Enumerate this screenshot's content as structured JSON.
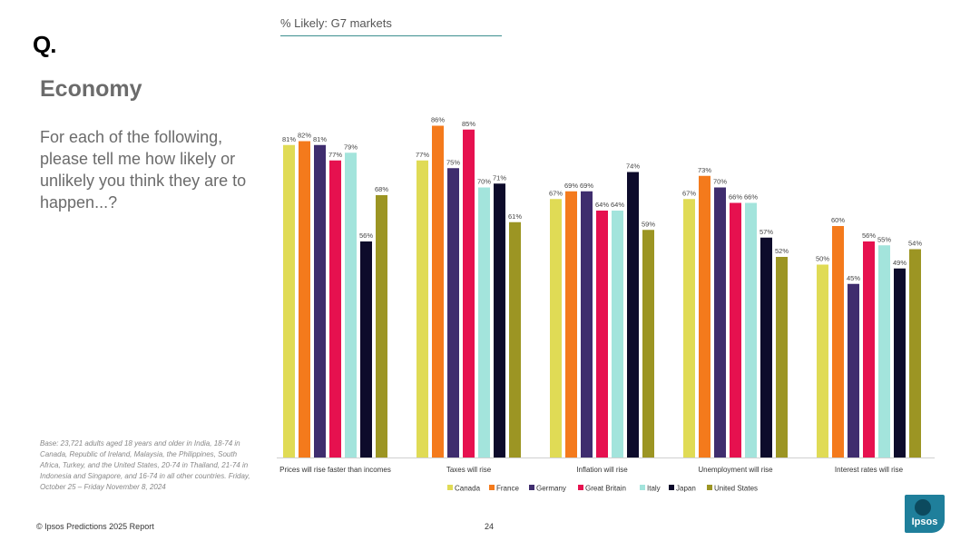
{
  "brand": {
    "logo_mark": "Q.",
    "ipsos_label": "Ipsos"
  },
  "header": {
    "subtitle": "% Likely: G7 markets"
  },
  "title": "Economy",
  "question": "For each of the following, please tell me how likely or unlikely you think they are to happen...?",
  "base_note": "Base: 23,721 adults aged 18 years and older in India, 18-74 in Canada, Republic of Ireland, Malaysia, the Philippines, South Africa, Turkey, and the United States, 20-74 in Thailand, 21-74 in Indonesia and Singapore, and 16-74 in all other countries. Friday, October 25 – Friday November 8, 2024",
  "footer": {
    "copyright": "© Ipsos Predictions 2025 Report",
    "page_number": "24"
  },
  "colors": {
    "Canada": "#e0db55",
    "France": "#f47a1c",
    "Germany": "#3f2d6e",
    "Great Britain": "#e6114f",
    "Italy": "#a3e4dc",
    "Japan": "#0d0b2b",
    "United States": "#9c9523"
  },
  "chart_data": {
    "type": "bar",
    "title": "% Likely: G7 markets",
    "categories": [
      "Prices will rise faster than incomes",
      "Taxes will rise",
      "Inflation will rise",
      "Unemployment will rise",
      "Interest rates will rise"
    ],
    "series": [
      {
        "name": "Canada",
        "values": [
          81,
          77,
          67,
          67,
          50
        ]
      },
      {
        "name": "France",
        "values": [
          82,
          86,
          69,
          73,
          60
        ]
      },
      {
        "name": "Germany",
        "values": [
          81,
          75,
          69,
          70,
          45
        ]
      },
      {
        "name": "Great Britain",
        "values": [
          77,
          85,
          64,
          66,
          56
        ]
      },
      {
        "name": "Italy",
        "values": [
          79,
          70,
          64,
          66,
          55
        ]
      },
      {
        "name": "Japan",
        "values": [
          56,
          71,
          74,
          57,
          49
        ]
      },
      {
        "name": "United States",
        "values": [
          68,
          61,
          59,
          52,
          54
        ]
      }
    ],
    "value_suffix": "%",
    "ylim": [
      0,
      100
    ],
    "grid": false,
    "legend_position": "bottom"
  }
}
